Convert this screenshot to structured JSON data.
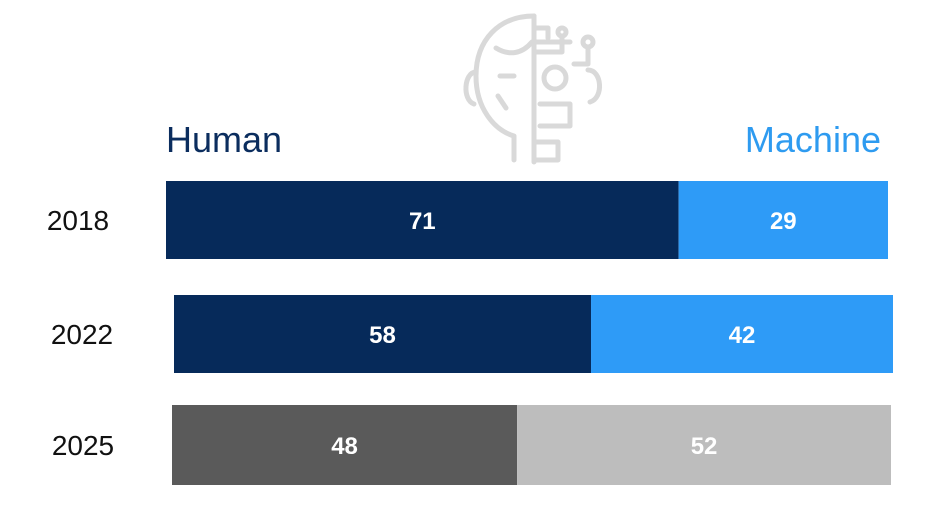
{
  "legend": {
    "human": "Human",
    "machine": "Machine"
  },
  "colors": {
    "human_label": "#0b2d5e",
    "machine_label": "#2e9bf0",
    "human_bar": "#062a5a",
    "machine_bar": "#2e9bf7",
    "projected_human_bar": "#5a5a5a",
    "projected_machine_bar": "#bdbdbd",
    "robot_outline": "#d9d9d9"
  },
  "icon": "robot-head-icon",
  "chart_data": {
    "type": "bar",
    "orientation": "horizontal",
    "stacked": true,
    "categories": [
      "2018",
      "2022",
      "2025"
    ],
    "series": [
      {
        "name": "Human",
        "values": [
          71,
          58,
          48
        ]
      },
      {
        "name": "Machine",
        "values": [
          29,
          42,
          52
        ]
      }
    ],
    "xlim": [
      0,
      100
    ],
    "grid": false,
    "legend_position": "top"
  }
}
